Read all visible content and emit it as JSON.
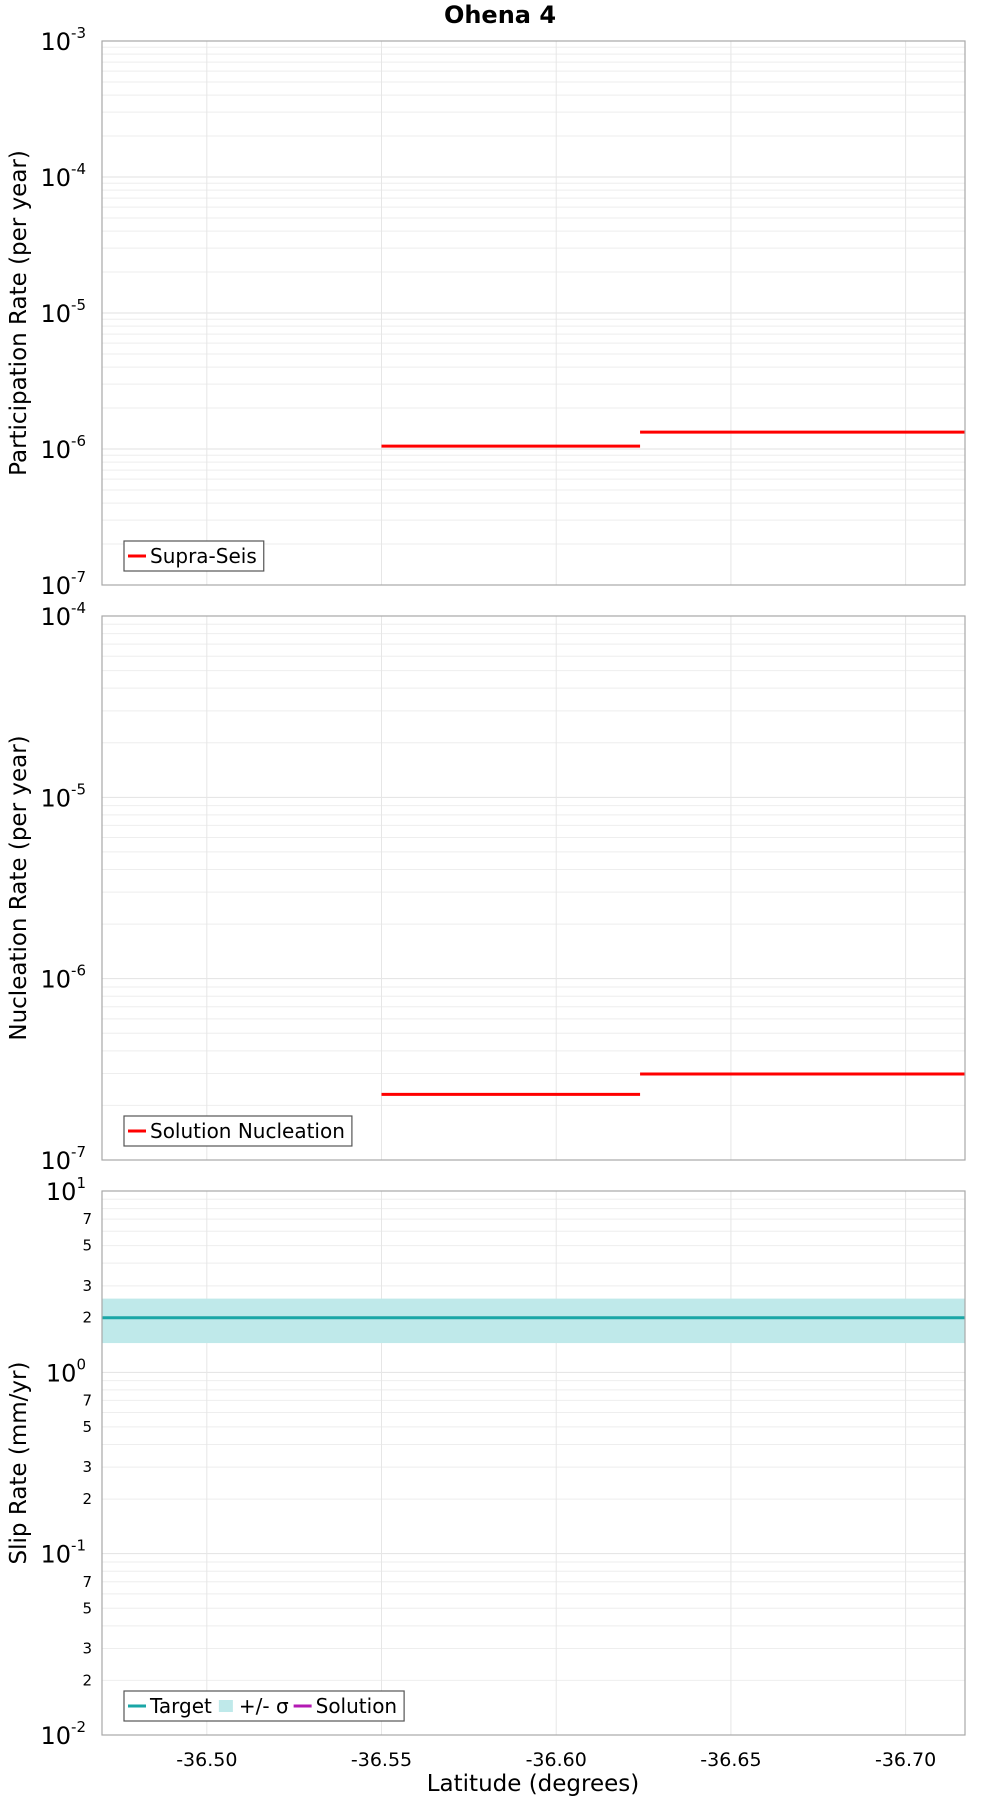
{
  "chart_data": {
    "type": "line",
    "title": "Ohena 4",
    "xlabel": "Latitude (degrees)",
    "xlim": [
      -36.47,
      -36.717
    ],
    "x_ticks": [
      "-36.50",
      "-36.55",
      "-36.60",
      "-36.65",
      "-36.70"
    ],
    "x_tick_values": [
      -36.5,
      -36.55,
      -36.6,
      -36.65,
      -36.7
    ],
    "grid": true,
    "subplots": [
      {
        "ylabel": "Participation Rate (per year)",
        "yscale": "log",
        "ylim": [
          1e-07,
          0.001
        ],
        "major_ticks": [
          {
            "value": 1e-07,
            "mantissa": "10",
            "exp": "-7"
          },
          {
            "value": 1e-06,
            "mantissa": "10",
            "exp": "-6"
          },
          {
            "value": 1e-05,
            "mantissa": "10",
            "exp": "-5"
          },
          {
            "value": 0.0001,
            "mantissa": "10",
            "exp": "-4"
          },
          {
            "value": 0.001,
            "mantissa": "10",
            "exp": "-3"
          }
        ],
        "minor_labels": [],
        "legend": {
          "position": "bottom-left",
          "entries": [
            {
              "label": "Supra-Seis",
              "color": "#ff0000",
              "kind": "line"
            }
          ]
        },
        "band": null,
        "series": [
          {
            "name": "Supra-Seis",
            "color": "#ff0000",
            "segments": [
              {
                "x": [
                  -36.55,
                  -36.624
                ],
                "y": 1.05e-06
              },
              {
                "x": [
                  -36.624,
                  -36.717
                ],
                "y": 1.33e-06
              }
            ]
          }
        ]
      },
      {
        "ylabel": "Nucleation Rate (per year)",
        "yscale": "log",
        "ylim": [
          1e-07,
          0.0001
        ],
        "major_ticks": [
          {
            "value": 1e-07,
            "mantissa": "10",
            "exp": "-7"
          },
          {
            "value": 1e-06,
            "mantissa": "10",
            "exp": "-6"
          },
          {
            "value": 1e-05,
            "mantissa": "10",
            "exp": "-5"
          },
          {
            "value": 0.0001,
            "mantissa": "10",
            "exp": "-4"
          }
        ],
        "minor_labels": [],
        "legend": {
          "position": "bottom-left",
          "entries": [
            {
              "label": "Solution Nucleation",
              "color": "#ff0000",
              "kind": "line"
            }
          ]
        },
        "band": null,
        "series": [
          {
            "name": "Solution Nucleation",
            "color": "#ff0000",
            "segments": [
              {
                "x": [
                  -36.55,
                  -36.624
                ],
                "y": 2.3e-07
              },
              {
                "x": [
                  -36.624,
                  -36.717
                ],
                "y": 2.98e-07
              }
            ]
          }
        ]
      },
      {
        "ylabel": "Slip Rate (mm/yr)",
        "yscale": "log",
        "ylim": [
          0.01,
          10
        ],
        "major_ticks": [
          {
            "value": 0.01,
            "mantissa": "10",
            "exp": "-2"
          },
          {
            "value": 0.1,
            "mantissa": "10",
            "exp": "-1"
          },
          {
            "value": 1,
            "mantissa": "10",
            "exp": "0"
          },
          {
            "value": 10,
            "mantissa": "10",
            "exp": "1"
          }
        ],
        "minor_labels": [
          {
            "value": 0.02,
            "label": "2"
          },
          {
            "value": 0.03,
            "label": "3"
          },
          {
            "value": 0.05,
            "label": "5"
          },
          {
            "value": 0.07,
            "label": "7"
          },
          {
            "value": 0.2,
            "label": "2"
          },
          {
            "value": 0.3,
            "label": "3"
          },
          {
            "value": 0.5,
            "label": "5"
          },
          {
            "value": 0.7,
            "label": "7"
          },
          {
            "value": 2,
            "label": "2"
          },
          {
            "value": 3,
            "label": "3"
          },
          {
            "value": 5,
            "label": "5"
          },
          {
            "value": 7,
            "label": "7"
          }
        ],
        "legend": {
          "position": "bottom-left",
          "entries": [
            {
              "label": "Target",
              "color": "#1aa6a6",
              "kind": "line"
            },
            {
              "label": "+/- σ",
              "color": "#bfe9ea",
              "kind": "band"
            },
            {
              "label": "Solution",
              "color": "#b31ab3",
              "kind": "line"
            }
          ]
        },
        "band": {
          "name": "+/- σ",
          "color": "#bfe9ea",
          "low": 1.45,
          "high": 2.55
        },
        "series": [
          {
            "name": "Target",
            "color": "#1aa6a6",
            "segments": [
              {
                "x": [
                  -36.47,
                  -36.717
                ],
                "y": 2.0
              }
            ]
          }
        ]
      }
    ]
  }
}
